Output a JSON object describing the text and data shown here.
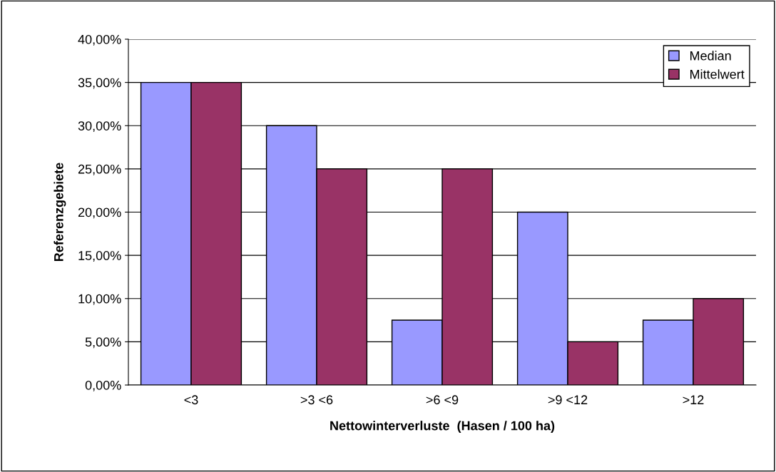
{
  "chart_data": {
    "type": "bar",
    "xlabel": "Nettowinterverluste  (Hasen / 100 ha)",
    "ylabel": "Referenzgebiete",
    "categories": [
      "<3",
      ">3 <6",
      ">6 <9",
      ">9 <12",
      ">12"
    ],
    "series": [
      {
        "name": "Median",
        "color": "#9999ff",
        "values": [
          35,
          30,
          7.5,
          20,
          7.5
        ]
      },
      {
        "name": "Mittelwert",
        "color": "#993366",
        "values": [
          35,
          25,
          25,
          5,
          10
        ]
      }
    ],
    "ylim": [
      0,
      40
    ],
    "yticks": [
      {
        "value": 0,
        "label": "0,00%"
      },
      {
        "value": 5,
        "label": "5,00%"
      },
      {
        "value": 10,
        "label": "10,00%"
      },
      {
        "value": 15,
        "label": "15,00%"
      },
      {
        "value": 20,
        "label": "20,00%"
      },
      {
        "value": 25,
        "label": "25,00%"
      },
      {
        "value": 30,
        "label": "30,00%"
      },
      {
        "value": 35,
        "label": "35,00%"
      },
      {
        "value": 40,
        "label": "40,00%"
      }
    ],
    "grid": "y",
    "legend": "top right"
  }
}
